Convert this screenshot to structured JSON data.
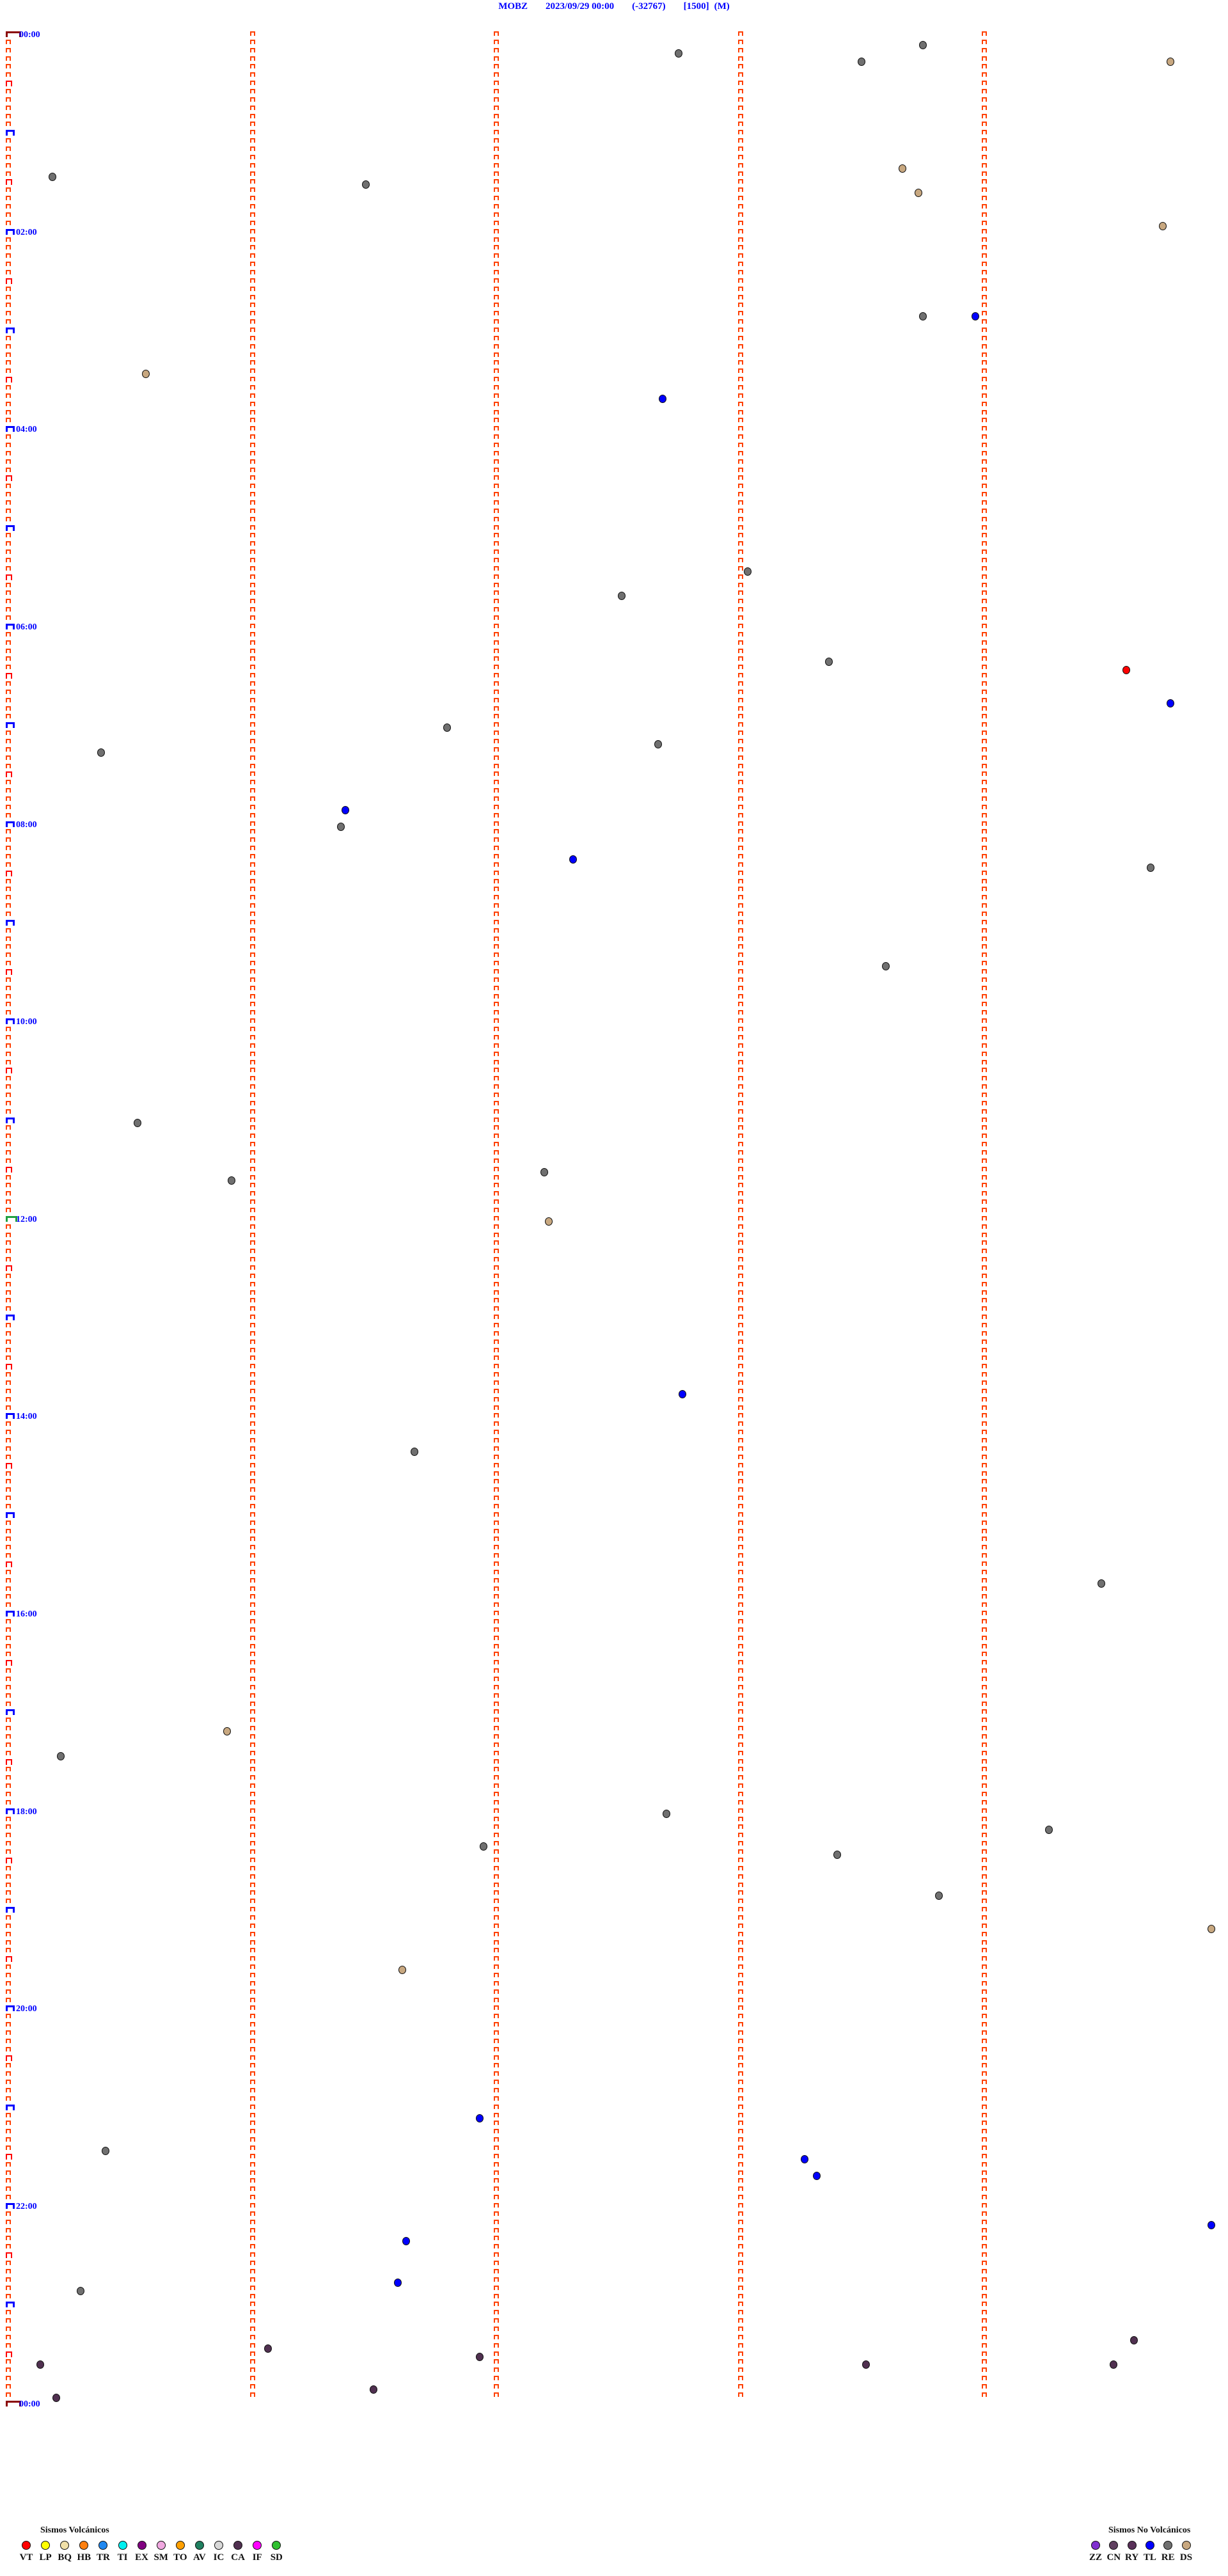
{
  "header": {
    "station": "MOBZ",
    "datetime": "2023/09/29 00:00",
    "offset": "(-32767)",
    "scale": "[1500]",
    "mode": "(M)"
  },
  "chart_data": {
    "type": "scatter",
    "title": "MOBZ 2023/09/29 00:00 (-32767) [1500] (M)",
    "row_minutes": 5,
    "hour_labels": [
      "00:00",
      "02:00",
      "04:00",
      "06:00",
      "08:00",
      "10:00",
      "12:00",
      "14:00",
      "16:00",
      "18:00",
      "20:00",
      "22:00",
      "00:00"
    ],
    "events": [
      {
        "time": "00:08:45",
        "type": "RE"
      },
      {
        "time": "00:12:45",
        "type": "RE"
      },
      {
        "time": "00:18:30",
        "type": "RE"
      },
      {
        "time": "00:19:46",
        "type": "DS"
      },
      {
        "time": "01:23:40",
        "type": "DS"
      },
      {
        "time": "01:25:11",
        "type": "RE"
      },
      {
        "time": "01:31:28",
        "type": "RE"
      },
      {
        "time": "01:38:44",
        "type": "DS"
      },
      {
        "time": "01:59:44",
        "type": "DS"
      },
      {
        "time": "02:53:45",
        "type": "RE"
      },
      {
        "time": "02:53:58",
        "type": "TL"
      },
      {
        "time": "03:25:34",
        "type": "DS"
      },
      {
        "time": "03:42:41",
        "type": "TL"
      },
      {
        "time": "05:28:02",
        "type": "RE"
      },
      {
        "time": "05:42:31",
        "type": "RE"
      },
      {
        "time": "06:23:22",
        "type": "RE"
      },
      {
        "time": "06:29:35",
        "type": "VT"
      },
      {
        "time": "06:49:46",
        "type": "TL"
      },
      {
        "time": "07:01:48",
        "type": "RE"
      },
      {
        "time": "07:12:40",
        "type": "RE"
      },
      {
        "time": "07:15:23",
        "type": "RE"
      },
      {
        "time": "07:51:23",
        "type": "TL"
      },
      {
        "time": "08:01:22",
        "type": "RE"
      },
      {
        "time": "08:22:19",
        "type": "TL"
      },
      {
        "time": "08:29:41",
        "type": "RE"
      },
      {
        "time": "09:28:36",
        "type": "RE"
      },
      {
        "time": "11:00:32",
        "type": "RE"
      },
      {
        "time": "11:32:12",
        "type": "RE"
      },
      {
        "time": "11:35:55",
        "type": "RE"
      },
      {
        "time": "12:02:13",
        "type": "DS"
      },
      {
        "time": "13:47:46",
        "type": "TL"
      },
      {
        "time": "14:21:40",
        "type": "RE"
      },
      {
        "time": "15:44:29",
        "type": "RE"
      },
      {
        "time": "17:10:54",
        "type": "DS"
      },
      {
        "time": "17:25:13",
        "type": "RE"
      },
      {
        "time": "18:02:42",
        "type": "RE"
      },
      {
        "time": "18:14:16",
        "type": "RE"
      },
      {
        "time": "18:21:57",
        "type": "RE"
      },
      {
        "time": "18:28:24",
        "type": "RE"
      },
      {
        "time": "18:53:49",
        "type": "RE"
      },
      {
        "time": "19:14:56",
        "type": "DS"
      },
      {
        "time": "19:36:37",
        "type": "DS"
      },
      {
        "time": "21:06:56",
        "type": "TL"
      },
      {
        "time": "21:25:24",
        "type": "RE"
      },
      {
        "time": "21:33:16",
        "type": "TL"
      },
      {
        "time": "21:43:19",
        "type": "TL"
      },
      {
        "time": "22:14:56",
        "type": "TL"
      },
      {
        "time": "22:21:38",
        "type": "TL"
      },
      {
        "time": "22:46:36",
        "type": "TL"
      },
      {
        "time": "22:50:18",
        "type": "RE"
      },
      {
        "time": "23:24:37",
        "type": "CA"
      },
      {
        "time": "23:26:04",
        "type": "CA"
      },
      {
        "time": "23:31:56",
        "type": "CA"
      },
      {
        "time": "23:35:08",
        "type": "CA"
      },
      {
        "time": "23:38:31",
        "type": "CA"
      },
      {
        "time": "23:39:32",
        "type": "CA"
      },
      {
        "time": "23:51:30",
        "type": "CA"
      },
      {
        "time": "23:55:12",
        "type": "CA"
      }
    ],
    "tick_color": "#ff4000"
  },
  "legend_volcanic": {
    "title": "Sismos Volcánicos",
    "items": [
      {
        "code": "VT",
        "color": "#ff0000"
      },
      {
        "code": "LP",
        "color": "#ffff00"
      },
      {
        "code": "BQ",
        "color": "#f0e0a8"
      },
      {
        "code": "HB",
        "color": "#ff8010"
      },
      {
        "code": "TR",
        "color": "#2088f0"
      },
      {
        "code": "TI",
        "color": "#00f0f0"
      },
      {
        "code": "EX",
        "color": "#800080"
      },
      {
        "code": "SM",
        "color": "#f0a8e0"
      },
      {
        "code": "TO",
        "color": "#ffa000"
      },
      {
        "code": "AV",
        "color": "#208060"
      },
      {
        "code": "IC",
        "color": "#d8d8d8"
      },
      {
        "code": "CA",
        "color": "#503050"
      },
      {
        "code": "IF",
        "color": "#ff00ff"
      },
      {
        "code": "SD",
        "color": "#30c030"
      }
    ]
  },
  "legend_non_volcanic": {
    "title": "Sismos No Volcánicos",
    "items": [
      {
        "code": "ZZ",
        "color": "#8030d0"
      },
      {
        "code": "CN",
        "color": "#604060"
      },
      {
        "code": "RY",
        "color": "#583058"
      },
      {
        "code": "TL",
        "color": "#0000ff"
      },
      {
        "code": "RE",
        "color": "#707070"
      },
      {
        "code": "DS",
        "color": "#c8a880"
      }
    ]
  }
}
